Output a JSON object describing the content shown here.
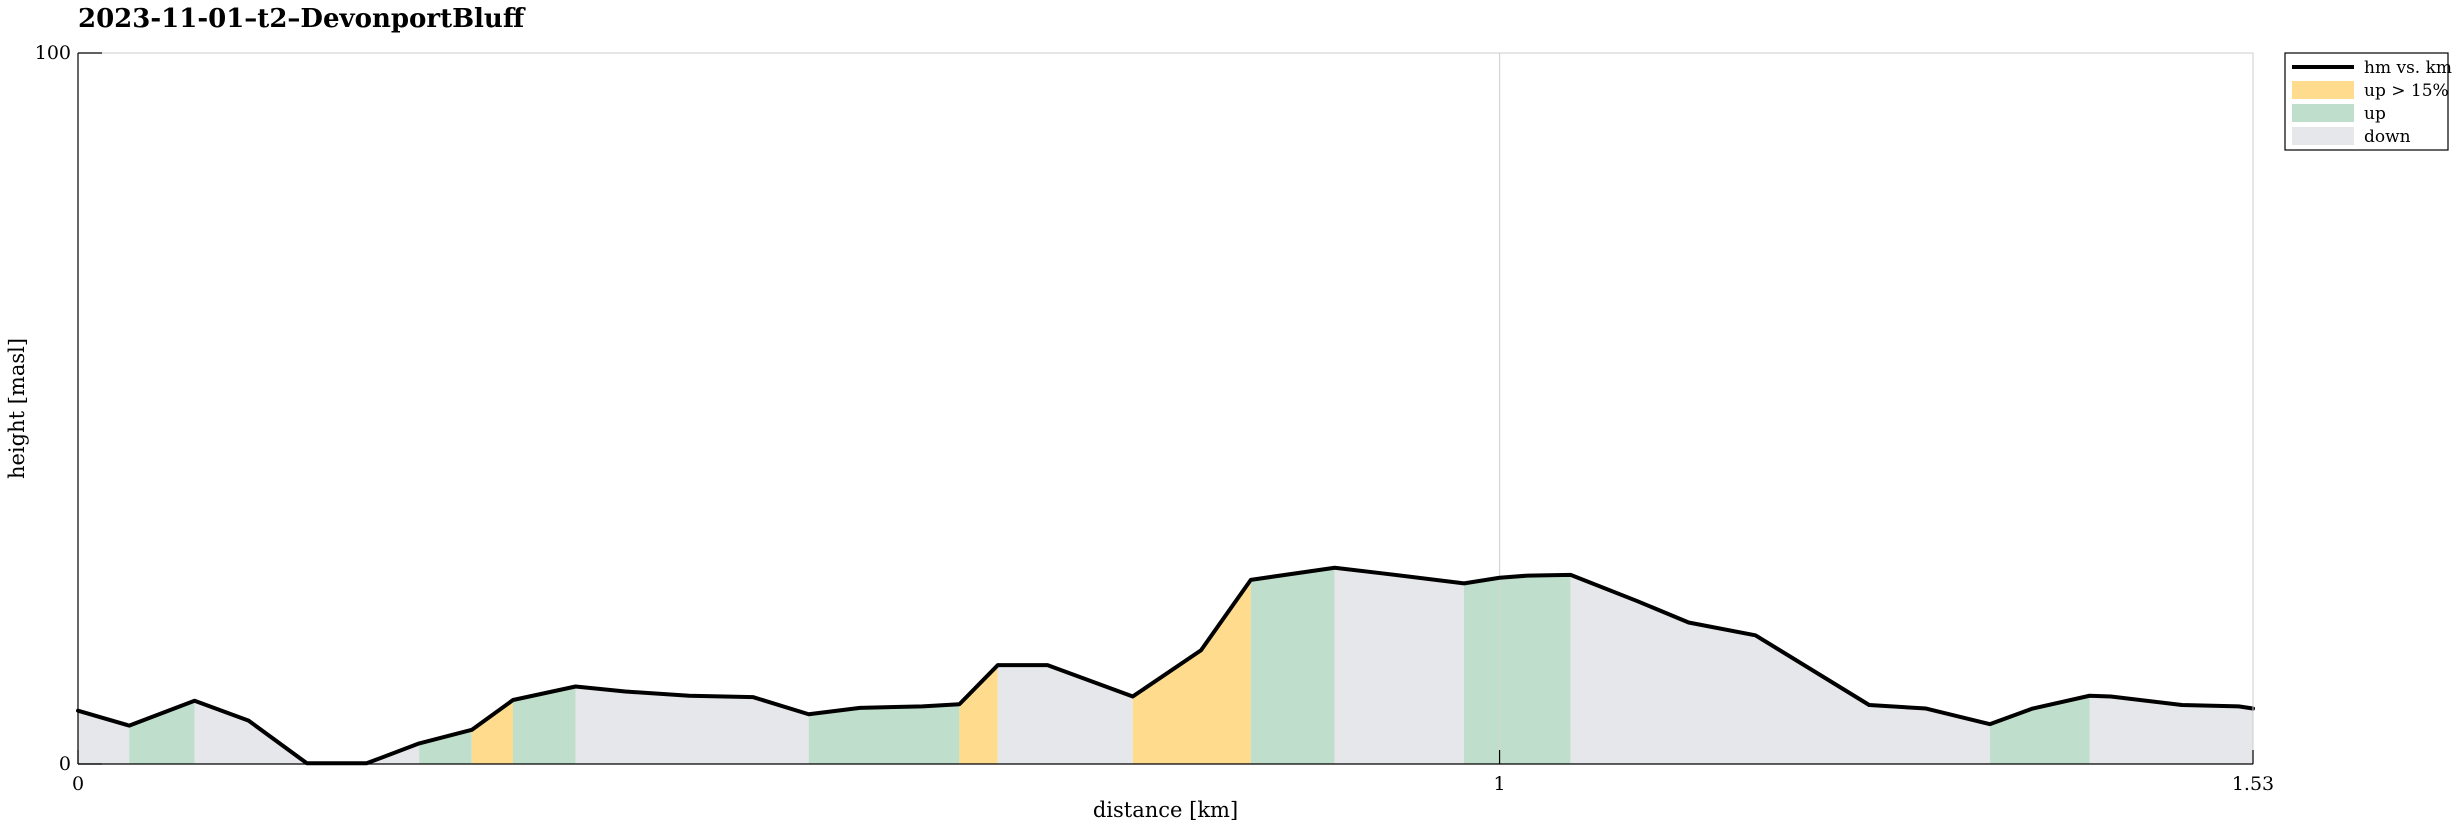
{
  "chart_data": {
    "type": "area",
    "title": "2023-11-01–t2–DevonportBluff",
    "xlabel": "distance [km]",
    "ylabel": "height [masl]",
    "xlim": [
      0,
      1.53
    ],
    "ylim": [
      0,
      100
    ],
    "xticks": [
      "0",
      "1",
      "1.53"
    ],
    "yticks": [
      "0",
      "100"
    ],
    "grid": "vertical line at x = 1",
    "legend_position": "outside top-right",
    "legend": [
      {
        "label": "hm vs. km",
        "style": "line",
        "color": "#000000"
      },
      {
        "label": "up > 15%",
        "style": "patch",
        "color": "#fedb8d"
      },
      {
        "label": "up",
        "style": "patch",
        "color": "#bfdfcc"
      },
      {
        "label": "down",
        "style": "patch",
        "color": "#e6e7ea"
      }
    ],
    "series": [
      {
        "name": "hm vs. km",
        "x": [
          0,
          0.036,
          0.082,
          0.12,
          0.161,
          0.203,
          0.24,
          0.277,
          0.306,
          0.35,
          0.385,
          0.43,
          0.475,
          0.514,
          0.55,
          0.594,
          0.62,
          0.647,
          0.682,
          0.742,
          0.79,
          0.825,
          0.884,
          0.918,
          0.975,
          1.0,
          1.02,
          1.05,
          1.097,
          1.133,
          1.18,
          1.26,
          1.3,
          1.345,
          1.375,
          1.415,
          1.43,
          1.48,
          1.52,
          1.53
        ],
        "y": [
          7.5,
          5.4,
          8.9,
          6.1,
          0.1,
          0.1,
          2.9,
          4.8,
          9.0,
          10.9,
          10.2,
          9.6,
          9.4,
          7.0,
          7.9,
          8.1,
          8.4,
          13.9,
          13.9,
          9.5,
          16.0,
          25.9,
          27.6,
          26.8,
          25.4,
          26.2,
          26.5,
          26.6,
          22.9,
          19.9,
          18.1,
          8.3,
          7.8,
          5.6,
          7.8,
          9.6,
          9.5,
          8.3,
          8.1,
          7.8
        ]
      }
    ],
    "segments": [
      {
        "from": 0,
        "to": 0.036,
        "class": "down"
      },
      {
        "from": 0.036,
        "to": 0.082,
        "class": "up"
      },
      {
        "from": 0.082,
        "to": 0.24,
        "class": "down"
      },
      {
        "from": 0.24,
        "to": 0.277,
        "class": "up"
      },
      {
        "from": 0.277,
        "to": 0.306,
        "class": "up > 15%"
      },
      {
        "from": 0.306,
        "to": 0.35,
        "class": "up"
      },
      {
        "from": 0.35,
        "to": 0.514,
        "class": "down"
      },
      {
        "from": 0.514,
        "to": 0.62,
        "class": "up"
      },
      {
        "from": 0.62,
        "to": 0.647,
        "class": "up > 15%"
      },
      {
        "from": 0.647,
        "to": 0.742,
        "class": "down"
      },
      {
        "from": 0.742,
        "to": 0.825,
        "class": "up > 15%"
      },
      {
        "from": 0.825,
        "to": 0.884,
        "class": "up"
      },
      {
        "from": 0.884,
        "to": 0.975,
        "class": "down"
      },
      {
        "from": 0.975,
        "to": 1.05,
        "class": "up"
      },
      {
        "from": 1.05,
        "to": 1.345,
        "class": "down"
      },
      {
        "from": 1.345,
        "to": 1.415,
        "class": "up"
      },
      {
        "from": 1.415,
        "to": 1.53,
        "class": "down"
      }
    ],
    "colors": {
      "line": "#000000",
      "up_steep": "#fedb8d",
      "up": "#bfdfcc",
      "down": "#e6e7ea",
      "grid": "#d4d4d4",
      "axes": "#000000",
      "box": "#cccccc"
    }
  }
}
